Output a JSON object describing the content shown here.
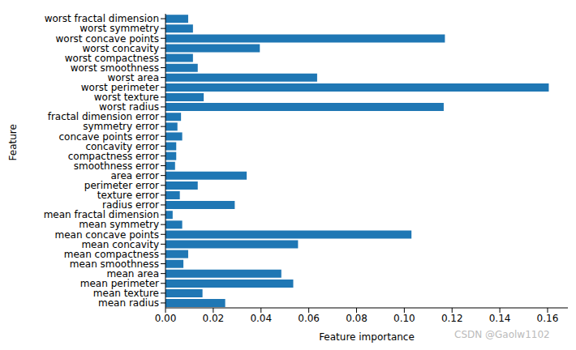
{
  "chart_data": {
    "type": "bar",
    "orientation": "horizontal",
    "xlabel": "Feature importance",
    "ylabel": "Feature",
    "annotations": [
      "CSDN @Gaolw1102"
    ],
    "color": "#1f77b4",
    "grid": false,
    "categories": [
      "mean radius",
      "mean texture",
      "mean perimeter",
      "mean area",
      "mean smoothness",
      "mean compactness",
      "mean concavity",
      "mean concave points",
      "mean symmetry",
      "mean fractal dimension",
      "radius error",
      "texture error",
      "perimeter error",
      "area error",
      "smoothness error",
      "compactness error",
      "concavity error",
      "concave points error",
      "symmetry error",
      "fractal dimension error",
      "worst radius",
      "worst texture",
      "worst perimeter",
      "worst area",
      "worst smoothness",
      "worst compactness",
      "worst concavity",
      "worst concave points",
      "worst symmetry",
      "worst fractal dimension"
    ],
    "values": [
      0.025,
      0.0155,
      0.0535,
      0.0485,
      0.0075,
      0.0095,
      0.0555,
      0.103,
      0.007,
      0.003,
      0.029,
      0.006,
      0.0135,
      0.034,
      0.004,
      0.0045,
      0.0045,
      0.007,
      0.005,
      0.0065,
      0.1165,
      0.016,
      0.1605,
      0.0635,
      0.0135,
      0.0115,
      0.0395,
      0.117,
      0.0115,
      0.0095
    ],
    "xlim": [
      0,
      0.1685
    ],
    "xticks": [
      {
        "value": 0,
        "label": "0.00"
      },
      {
        "value": 0.02,
        "label": "0.02"
      },
      {
        "value": 0.04,
        "label": "0.04"
      },
      {
        "value": 0.06,
        "label": "0.06"
      },
      {
        "value": 0.08,
        "label": "0.08"
      },
      {
        "value": 0.1,
        "label": "0.10"
      },
      {
        "value": 0.12,
        "label": "0.12"
      },
      {
        "value": 0.14,
        "label": "0.14"
      },
      {
        "value": 0.16,
        "label": "0.16"
      }
    ]
  }
}
